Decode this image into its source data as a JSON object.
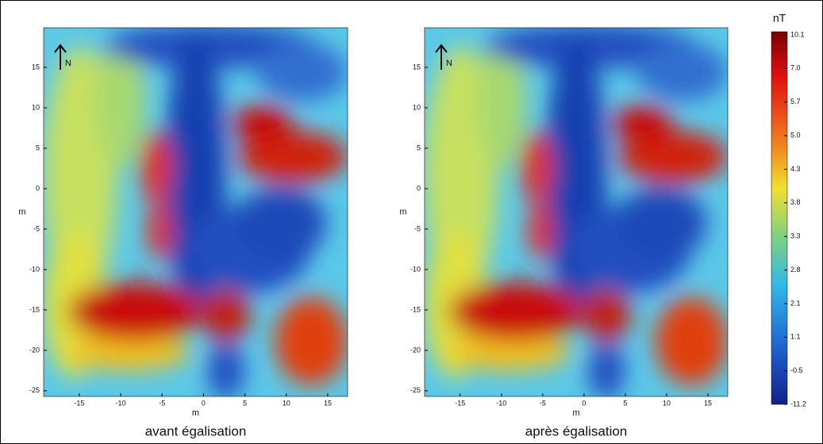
{
  "chart_data": [
    {
      "type": "heatmap",
      "xlabel": "m",
      "ylabel": "m",
      "caption": "avant égalisation",
      "annotation": "N",
      "xlim": [
        -19.3,
        17.4
      ],
      "ylim": [
        -25.7,
        19.9
      ],
      "xticks": [
        -15,
        -10,
        -5,
        0,
        5,
        10,
        15
      ],
      "yticks": [
        15,
        10,
        5,
        0,
        -5,
        -10,
        -15,
        -20,
        -25
      ]
    },
    {
      "type": "heatmap",
      "xlabel": "m",
      "ylabel": "m",
      "caption": "après égalisation",
      "annotation": "N",
      "xlim": [
        -19.3,
        17.4
      ],
      "ylim": [
        -25.7,
        19.9
      ],
      "xticks": [
        -15,
        -10,
        -5,
        0,
        5,
        10,
        15
      ],
      "yticks": [
        15,
        10,
        5,
        0,
        -5,
        -10,
        -15,
        -20,
        -25
      ]
    }
  ],
  "colorbar": {
    "title": "nT",
    "ticks": [
      10.1,
      {
        "value": 7,
        "label": "7.0"
      },
      5.7,
      {
        "value": 5,
        "label": "5.0"
      },
      4.3,
      3.8,
      3.3,
      2.8,
      2.1,
      1.1,
      -0.5,
      -11.2
    ]
  }
}
